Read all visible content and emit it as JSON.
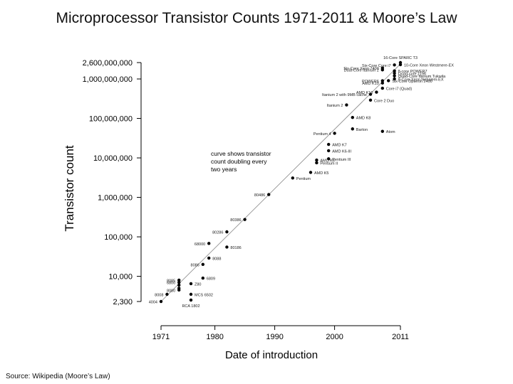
{
  "title": "Microprocessor Transistor Counts 1971-2011 & Moore’s Law",
  "source": "Source: Wikipedia (Moore’s Law)",
  "chart_data": {
    "type": "scatter",
    "title": "Microprocessor Transistor Counts 1971-2011 & Moore’s Law",
    "xlabel": "Date of introduction",
    "ylabel": "Transistor count",
    "xlim": [
      1971,
      2011
    ],
    "ylim": [
      2300,
      2600000000
    ],
    "yscale": "log",
    "x_ticks": [
      "1971",
      "1980",
      "1990",
      "2000",
      "2011"
    ],
    "y_ticks": [
      {
        "value": 2300,
        "label": "2,300"
      },
      {
        "value": 10000,
        "label": "10,000"
      },
      {
        "value": 100000,
        "label": "100,000"
      },
      {
        "value": 1000000,
        "label": "1,000,000"
      },
      {
        "value": 10000000,
        "label": "10,000,000"
      },
      {
        "value": 100000000,
        "label": "100,000,000"
      },
      {
        "value": 1000000000,
        "label": "1,000,000,000"
      },
      {
        "value": 2600000000,
        "label": "2,600,000,000"
      }
    ],
    "trend_line": {
      "x": [
        1971,
        2011
      ],
      "y": [
        2300,
        2400000000
      ]
    },
    "annotation": [
      "curve shows transistor",
      "count doubling every",
      "two years"
    ],
    "points": [
      {
        "x": 1971,
        "y": 2300,
        "label": "4004",
        "side": "left"
      },
      {
        "x": 1972,
        "y": 3500,
        "label": "8008",
        "side": "left"
      },
      {
        "x": 1974,
        "y": 4500,
        "label": "8080",
        "side": "left"
      },
      {
        "x": 1974,
        "y": 5000,
        "label": "",
        "side": "right"
      },
      {
        "x": 1974,
        "y": 6000,
        "label": "",
        "side": "right"
      },
      {
        "x": 1974,
        "y": 7000,
        "label": "6800",
        "side": "left"
      },
      {
        "x": 1974,
        "y": 8000,
        "label": "8085",
        "side": "left"
      },
      {
        "x": 1976,
        "y": 2500,
        "label": "RCA 1802",
        "side": "below"
      },
      {
        "x": 1976,
        "y": 3500,
        "label": "MCS 6502",
        "side": "right"
      },
      {
        "x": 1976,
        "y": 6500,
        "label": "Z80",
        "side": "right"
      },
      {
        "x": 1978,
        "y": 9000,
        "label": "6809",
        "side": "right"
      },
      {
        "x": 1978,
        "y": 20000,
        "label": "8086",
        "side": "left"
      },
      {
        "x": 1979,
        "y": 29000,
        "label": "8088",
        "side": "right"
      },
      {
        "x": 1979,
        "y": 68000,
        "label": "68000",
        "side": "left"
      },
      {
        "x": 1982,
        "y": 55000,
        "label": "80186",
        "side": "right"
      },
      {
        "x": 1982,
        "y": 134000,
        "label": "80286",
        "side": "left"
      },
      {
        "x": 1985,
        "y": 275000,
        "label": "80386",
        "side": "left"
      },
      {
        "x": 1989,
        "y": 1180000,
        "label": "80486",
        "side": "left"
      },
      {
        "x": 1993,
        "y": 3100000,
        "label": "Pentium",
        "side": "right"
      },
      {
        "x": 1996,
        "y": 4300000,
        "label": "AMD K5",
        "side": "right"
      },
      {
        "x": 1997,
        "y": 7500000,
        "label": "Pentium II",
        "side": "right"
      },
      {
        "x": 1997,
        "y": 8800000,
        "label": "AMD K6",
        "side": "right"
      },
      {
        "x": 1999,
        "y": 9500000,
        "label": "Pentium III",
        "side": "right"
      },
      {
        "x": 1999,
        "y": 15200000,
        "label": "AMD K6-III",
        "side": "right"
      },
      {
        "x": 1999,
        "y": 22000000,
        "label": "AMD K7",
        "side": "right"
      },
      {
        "x": 2000,
        "y": 42000000,
        "label": "Pentium 4",
        "side": "left"
      },
      {
        "x": 2003,
        "y": 54300000,
        "label": "Barton",
        "side": "right"
      },
      {
        "x": 2003,
        "y": 105900000,
        "label": "AMD K8",
        "side": "right"
      },
      {
        "x": 2002,
        "y": 220000000,
        "label": "Itanium 2",
        "side": "left"
      },
      {
        "x": 2006,
        "y": 291000000,
        "label": "Core 2 Duo",
        "side": "right"
      },
      {
        "x": 2008,
        "y": 47000000,
        "label": "Atom",
        "side": "right"
      },
      {
        "x": 2006,
        "y": 410000000,
        "label": "Itanium 2 with 9MB cache",
        "side": "left"
      },
      {
        "x": 2007,
        "y": 463000000,
        "label": "AMD K10",
        "side": "left"
      },
      {
        "x": 2008,
        "y": 582000000,
        "label": "Core i7 (Quad)",
        "side": "right"
      },
      {
        "x": 2009,
        "y": 904000000,
        "label": "Six-Core Opteron 2400",
        "side": "right"
      },
      {
        "x": 2008,
        "y": 789000000,
        "label": "AMD K10",
        "side": "left"
      },
      {
        "x": 2008,
        "y": 900000000,
        "label": "POWER6",
        "side": "left"
      },
      {
        "x": 2010,
        "y": 1000000000,
        "label": "8-Core Xeon Nehalem-EX",
        "side": "right"
      },
      {
        "x": 2010,
        "y": 1200000000,
        "label": "Quad-Core Itanium Tukwila",
        "side": "right"
      },
      {
        "x": 2010,
        "y": 1400000000,
        "label": "Quad-core z196",
        "side": "right"
      },
      {
        "x": 2010,
        "y": 1600000000,
        "label": "8-core POWER7",
        "side": "right"
      },
      {
        "x": 2008,
        "y": 1700000000,
        "label": "Dual-Core Itanium 2",
        "side": "left"
      },
      {
        "x": 2008,
        "y": 1900000000,
        "label": "Six-Core Xeon 7400",
        "side": "left"
      },
      {
        "x": 2011,
        "y": 2300000000,
        "label": "10-Core Xeon Westmere-EX",
        "side": "right"
      },
      {
        "x": 2010,
        "y": 2270000000,
        "label": "Six-Core Core i7",
        "side": "left"
      },
      {
        "x": 2011,
        "y": 2600000000,
        "label": "16-Core SPARC T3",
        "side": "above"
      }
    ]
  }
}
